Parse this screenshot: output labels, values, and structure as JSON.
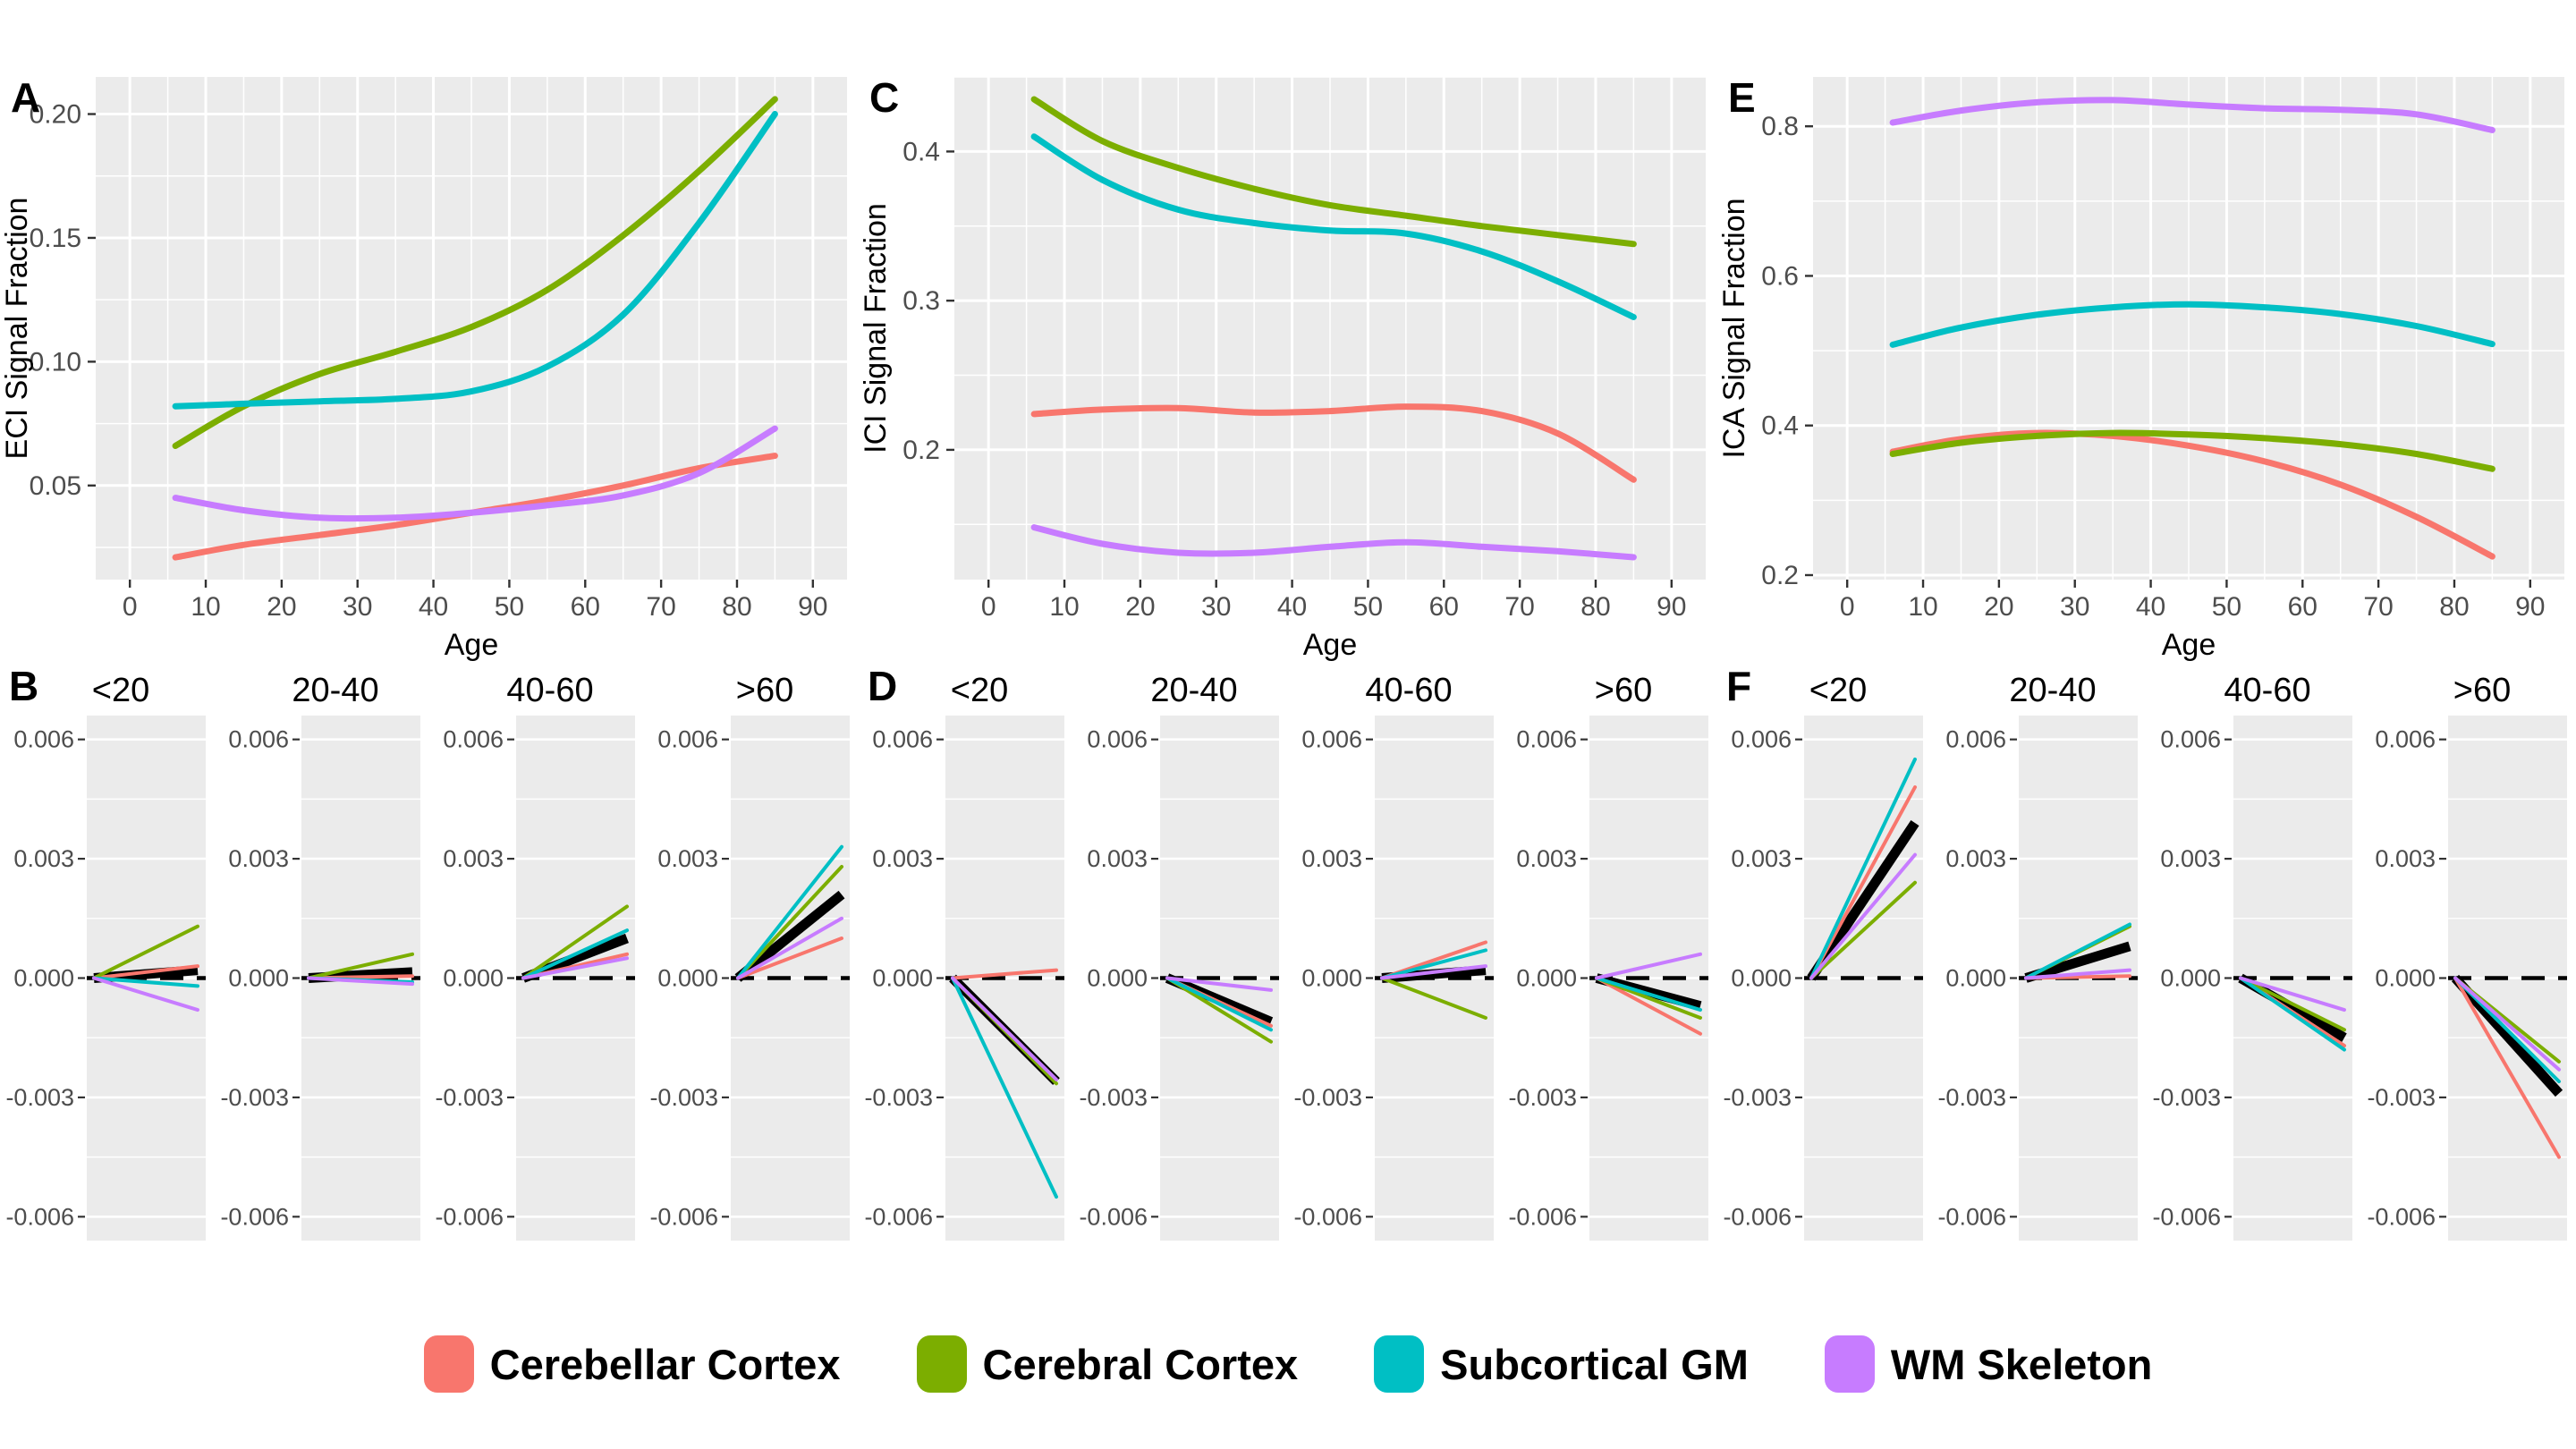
{
  "palette": {
    "background": "#FFFFFF",
    "panel_background": "#EBEBEB",
    "gridline": "#FFFFFF",
    "tick_mark": "#333333",
    "tick_label": "#4D4D4D",
    "axis_title": "#000000",
    "mean_line": "#000000",
    "zero_reference_line": "#000000"
  },
  "legend": {
    "items": [
      {
        "label": "Cerebellar Cortex",
        "color": "#F8766D"
      },
      {
        "label": "Cerebral Cortex",
        "color": "#7CAE00"
      },
      {
        "label": "Subcortical GM",
        "color": "#00BFC4"
      },
      {
        "label": "WM Skeleton",
        "color": "#C77CFF"
      }
    ]
  },
  "chart_data": [
    {
      "id": "A",
      "type": "line",
      "panel_label": "A",
      "xlabel": "Age",
      "ylabel": "ECI Signal Fraction",
      "xlim": [
        -4.5,
        94.5
      ],
      "ylim": [
        0.012,
        0.215
      ],
      "x_ticks": [
        0,
        10,
        20,
        30,
        40,
        50,
        60,
        70,
        80,
        90
      ],
      "x_tick_labels": [
        "0",
        "10",
        "20",
        "30",
        "40",
        "50",
        "60",
        "70",
        "80",
        "90"
      ],
      "y_ticks": [
        0.05,
        0.1,
        0.15,
        0.2
      ],
      "y_tick_labels": [
        "0.05",
        "0.10",
        "0.15",
        "0.20"
      ],
      "x": [
        6,
        15,
        25,
        35,
        45,
        55,
        65,
        75,
        85
      ],
      "series": [
        {
          "name": "Cerebellar Cortex",
          "values": [
            0.021,
            0.026,
            0.03,
            0.034,
            0.039,
            0.044,
            0.05,
            0.057,
            0.062
          ]
        },
        {
          "name": "Cerebral Cortex",
          "values": [
            0.066,
            0.082,
            0.095,
            0.104,
            0.114,
            0.129,
            0.151,
            0.177,
            0.206
          ]
        },
        {
          "name": "Subcortical GM",
          "values": [
            0.082,
            0.083,
            0.084,
            0.085,
            0.088,
            0.098,
            0.119,
            0.156,
            0.2
          ]
        },
        {
          "name": "WM Skeleton",
          "values": [
            0.045,
            0.04,
            0.037,
            0.037,
            0.039,
            0.042,
            0.046,
            0.055,
            0.073
          ]
        }
      ]
    },
    {
      "id": "C",
      "type": "line",
      "panel_label": "C",
      "xlabel": "Age",
      "ylabel": "ICI Signal Fraction",
      "xlim": [
        -4.5,
        94.5
      ],
      "ylim": [
        0.113,
        0.45
      ],
      "x_ticks": [
        0,
        10,
        20,
        30,
        40,
        50,
        60,
        70,
        80,
        90
      ],
      "x_tick_labels": [
        "0",
        "10",
        "20",
        "30",
        "40",
        "50",
        "60",
        "70",
        "80",
        "90"
      ],
      "y_ticks": [
        0.2,
        0.3,
        0.4
      ],
      "y_tick_labels": [
        "0.2",
        "0.3",
        "0.4"
      ],
      "x": [
        6,
        15,
        25,
        35,
        45,
        55,
        65,
        75,
        85
      ],
      "series": [
        {
          "name": "Cerebellar Cortex",
          "values": [
            0.224,
            0.227,
            0.228,
            0.225,
            0.226,
            0.229,
            0.226,
            0.211,
            0.18
          ]
        },
        {
          "name": "Cerebral Cortex",
          "values": [
            0.435,
            0.407,
            0.389,
            0.375,
            0.364,
            0.357,
            0.35,
            0.344,
            0.338
          ]
        },
        {
          "name": "Subcortical GM",
          "values": [
            0.41,
            0.381,
            0.361,
            0.352,
            0.347,
            0.345,
            0.333,
            0.313,
            0.289
          ]
        },
        {
          "name": "WM Skeleton",
          "values": [
            0.148,
            0.137,
            0.131,
            0.131,
            0.135,
            0.138,
            0.135,
            0.132,
            0.128
          ]
        }
      ]
    },
    {
      "id": "E",
      "type": "line",
      "panel_label": "E",
      "xlabel": "Age",
      "ylabel": "ICA Signal Fraction",
      "xlim": [
        -4.5,
        94.5
      ],
      "ylim": [
        0.194,
        0.866
      ],
      "x_ticks": [
        0,
        10,
        20,
        30,
        40,
        50,
        60,
        70,
        80,
        90
      ],
      "x_tick_labels": [
        "0",
        "10",
        "20",
        "30",
        "40",
        "50",
        "60",
        "70",
        "80",
        "90"
      ],
      "y_ticks": [
        0.2,
        0.4,
        0.6,
        0.8
      ],
      "y_tick_labels": [
        "0.2",
        "0.4",
        "0.6",
        "0.8"
      ],
      "x": [
        6,
        15,
        25,
        35,
        45,
        55,
        65,
        75,
        85
      ],
      "series": [
        {
          "name": "Cerebellar Cortex",
          "values": [
            0.365,
            0.382,
            0.39,
            0.386,
            0.373,
            0.352,
            0.321,
            0.278,
            0.225
          ]
        },
        {
          "name": "Cerebral Cortex",
          "values": [
            0.362,
            0.377,
            0.386,
            0.39,
            0.388,
            0.383,
            0.375,
            0.362,
            0.342
          ]
        },
        {
          "name": "Subcortical GM",
          "values": [
            0.508,
            0.531,
            0.548,
            0.558,
            0.562,
            0.558,
            0.549,
            0.533,
            0.509
          ]
        },
        {
          "name": "WM Skeleton",
          "values": [
            0.805,
            0.821,
            0.832,
            0.835,
            0.829,
            0.824,
            0.822,
            0.816,
            0.795
          ]
        }
      ]
    },
    {
      "id": "B",
      "type": "slope-facets",
      "panel_label": "B",
      "facets": [
        "<20",
        "20-40",
        "40-60",
        ">60"
      ],
      "ylim": [
        -0.0066,
        0.0066
      ],
      "y_ticks": [
        0.006,
        0.003,
        0,
        -0.003,
        -0.006
      ],
      "y_tick_labels": [
        "0.006",
        "0.003",
        "0.000",
        "-0.003",
        "-0.006"
      ],
      "series_names": [
        "Cerebellar Cortex",
        "Cerebral Cortex",
        "Subcortical GM",
        "WM Skeleton"
      ],
      "reference_line": 0,
      "slopes": [
        {
          "facet": "<20",
          "series_end": [
            0.0003,
            0.0013,
            -0.0002,
            -0.0008
          ],
          "mean_end": 0.0002
        },
        {
          "facet": "20-40",
          "series_end": [
            5e-05,
            0.0006,
            -0.0001,
            -0.00015
          ],
          "mean_end": 0.00015
        },
        {
          "facet": "40-60",
          "series_end": [
            0.0006,
            0.0018,
            0.0012,
            0.0005
          ],
          "mean_end": 0.001
        },
        {
          "facet": ">60",
          "series_end": [
            0.001,
            0.0028,
            0.0033,
            0.0015
          ],
          "mean_end": 0.0021
        }
      ]
    },
    {
      "id": "D",
      "type": "slope-facets",
      "panel_label": "D",
      "facets": [
        "<20",
        "20-40",
        "40-60",
        ">60"
      ],
      "ylim": [
        -0.0066,
        0.0066
      ],
      "y_ticks": [
        0.006,
        0.003,
        0,
        -0.003,
        -0.006
      ],
      "y_tick_labels": [
        "0.006",
        "0.003",
        "0.000",
        "-0.003",
        "-0.006"
      ],
      "series_names": [
        "Cerebellar Cortex",
        "Cerebral Cortex",
        "Subcortical GM",
        "WM Skeleton"
      ],
      "reference_line": 0,
      "slopes": [
        {
          "facet": "<20",
          "series_end": [
            0.0002,
            -0.00265,
            -0.0055,
            -0.00255
          ],
          "mean_end": -0.0026
        },
        {
          "facet": "20-40",
          "series_end": [
            -0.0012,
            -0.0016,
            -0.0013,
            -0.0003
          ],
          "mean_end": -0.0011
        },
        {
          "facet": "40-60",
          "series_end": [
            0.0009,
            -0.001,
            0.0007,
            0.0003
          ],
          "mean_end": 0.0002
        },
        {
          "facet": ">60",
          "series_end": [
            -0.0014,
            -0.001,
            -0.0008,
            0.0006
          ],
          "mean_end": -0.0007
        }
      ]
    },
    {
      "id": "F",
      "type": "slope-facets",
      "panel_label": "F",
      "facets": [
        "<20",
        "20-40",
        "40-60",
        ">60"
      ],
      "ylim": [
        -0.0066,
        0.0066
      ],
      "y_ticks": [
        0.006,
        0.003,
        0,
        -0.003,
        -0.006
      ],
      "y_tick_labels": [
        "0.006",
        "0.003",
        "0.000",
        "-0.003",
        "-0.006"
      ],
      "series_names": [
        "Cerebellar Cortex",
        "Cerebral Cortex",
        "Subcortical GM",
        "WM Skeleton"
      ],
      "reference_line": 0,
      "slopes": [
        {
          "facet": "<20",
          "series_end": [
            0.0048,
            0.0024,
            0.0055,
            0.0031
          ],
          "mean_end": 0.0039
        },
        {
          "facet": "20-40",
          "series_end": [
            5e-05,
            0.0013,
            0.00135,
            0.0002
          ],
          "mean_end": 0.0008
        },
        {
          "facet": "40-60",
          "series_end": [
            -0.0017,
            -0.0013,
            -0.0018,
            -0.0008
          ],
          "mean_end": -0.0015
        },
        {
          "facet": ">60",
          "series_end": [
            -0.0045,
            -0.0021,
            -0.0026,
            -0.0023
          ],
          "mean_end": -0.0029
        }
      ]
    }
  ]
}
